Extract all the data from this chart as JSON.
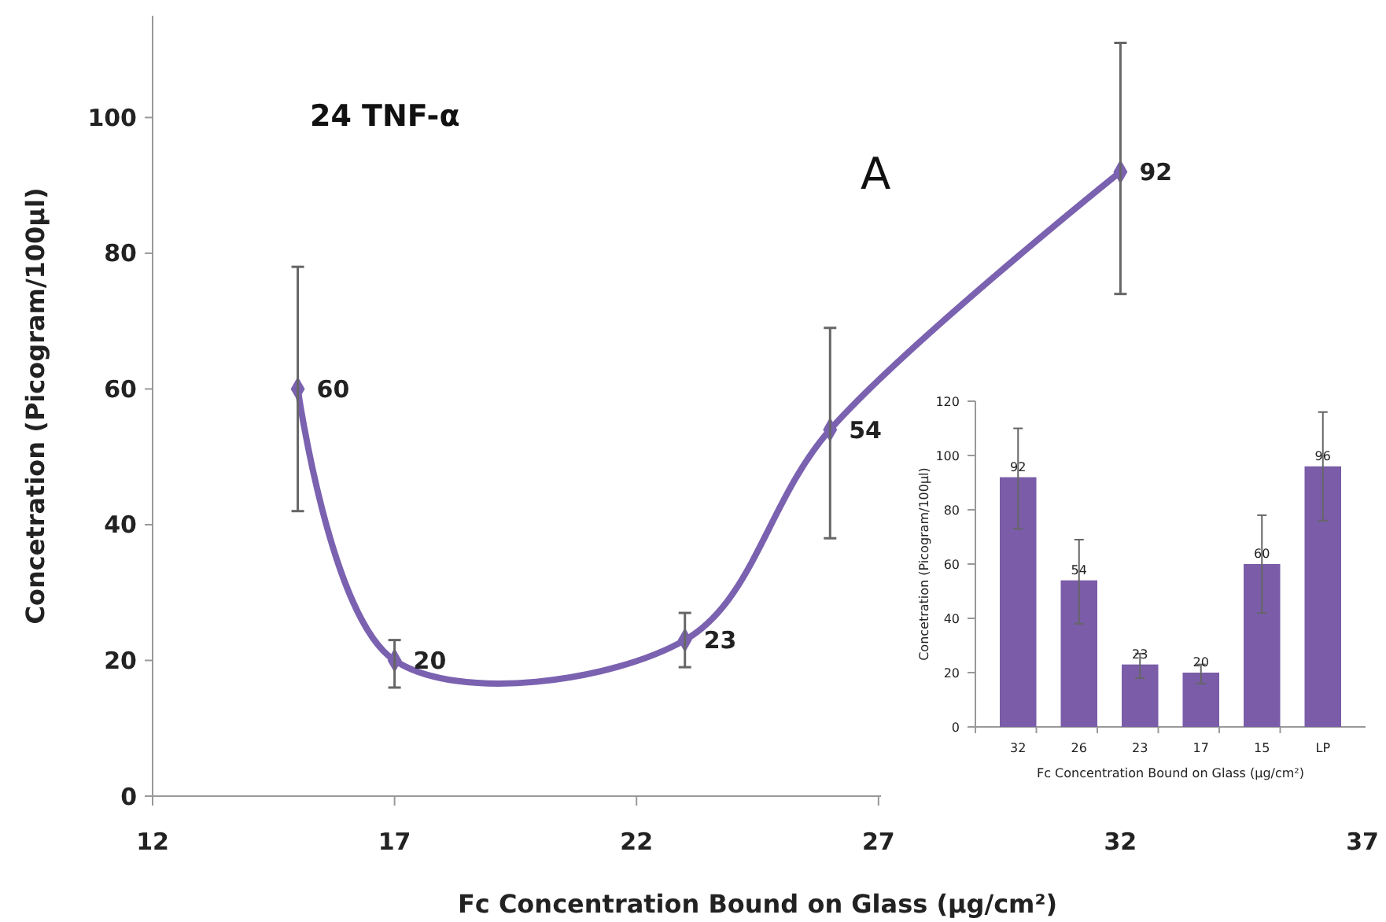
{
  "chart_data": [
    {
      "type": "line",
      "title": "24 TNF-α",
      "xlabel": "Fc Concentration  Bound on Glass (μg/cm²)",
      "ylabel": "Concetration  (Picogram/100μl)",
      "annotations": [
        "A"
      ],
      "x": [
        15,
        17,
        23,
        26,
        32
      ],
      "series": [
        {
          "color": "#7b62b0",
          "values": [
            60,
            20,
            23,
            54,
            92
          ],
          "errors": [
            [
              42,
              78
            ],
            [
              16,
              23
            ],
            [
              19,
              27
            ],
            [
              38,
              69
            ],
            [
              74,
              111
            ]
          ]
        }
      ],
      "xlim": [
        12,
        37
      ],
      "xticks": [
        12,
        17,
        22,
        27,
        32,
        37
      ],
      "ylim": [
        0,
        115
      ],
      "yticks": [
        0,
        20,
        40,
        60,
        80,
        100
      ],
      "marker": "diamond",
      "line_style": "solid",
      "data_labels": true
    },
    {
      "type": "bar",
      "xlabel": "Fc Concentration  Bound on Glass (μg/cm²)",
      "ylabel": "Concetration  (Picogram/100μl)",
      "categories": [
        "32",
        "26",
        "23",
        "17",
        "15",
        "LP"
      ],
      "values": [
        92,
        54,
        23,
        20,
        60,
        96
      ],
      "errors": [
        [
          73,
          110
        ],
        [
          38,
          69
        ],
        [
          18,
          27
        ],
        [
          16,
          23
        ],
        [
          42,
          78
        ],
        [
          76,
          116
        ]
      ],
      "color": "#7a5ca8",
      "ylim": [
        0,
        120
      ],
      "yticks": [
        0,
        20,
        40,
        60,
        80,
        100,
        120
      ],
      "data_labels": true
    }
  ]
}
